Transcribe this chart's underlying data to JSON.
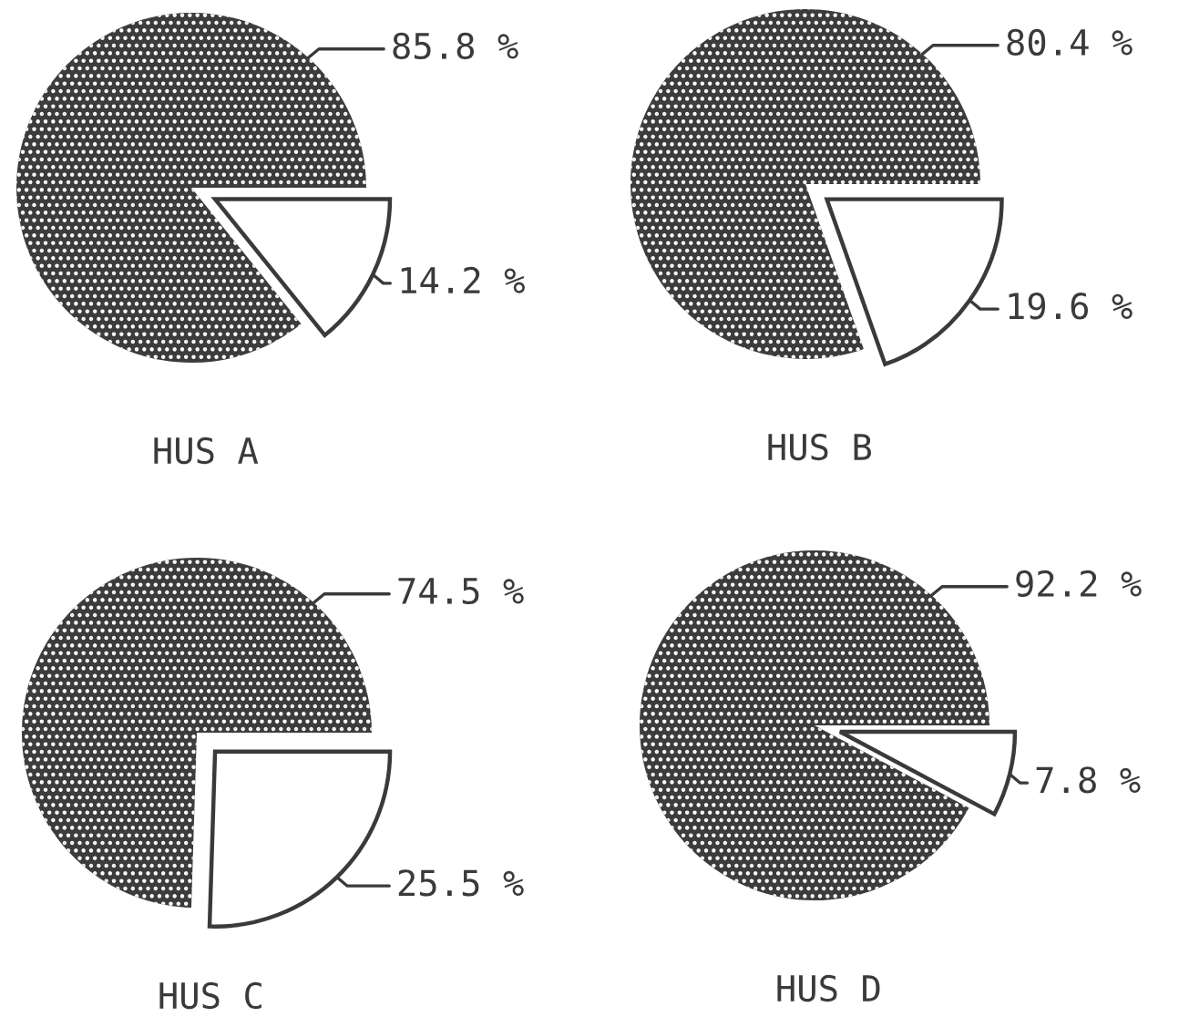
{
  "chart_data": [
    {
      "type": "pie",
      "title": "HUS A",
      "categories": [
        null,
        null
      ],
      "values": [
        85.8,
        14.2
      ],
      "colors": [
        "#3c3c3c",
        "#ffffff"
      ],
      "value_labels": [
        "85.8 %",
        "14.2 %"
      ]
    },
    {
      "type": "pie",
      "title": "HUS B",
      "categories": [
        null,
        null
      ],
      "values": [
        80.4,
        19.6
      ],
      "colors": [
        "#3c3c3c",
        "#ffffff"
      ],
      "value_labels": [
        "80.4 %",
        "19.6 %"
      ]
    },
    {
      "type": "pie",
      "title": "HUS C",
      "categories": [
        null,
        null
      ],
      "values": [
        74.5,
        25.5
      ],
      "colors": [
        "#3c3c3c",
        "#ffffff"
      ],
      "value_labels": [
        "74.5 %",
        "25.5 %"
      ]
    },
    {
      "type": "pie",
      "title": "HUS D",
      "categories": [
        null,
        null
      ],
      "values": [
        92.2,
        7.8
      ],
      "colors": [
        "#3c3c3c",
        "#ffffff"
      ],
      "value_labels": [
        "92.2 %",
        "7.8 %"
      ]
    }
  ]
}
